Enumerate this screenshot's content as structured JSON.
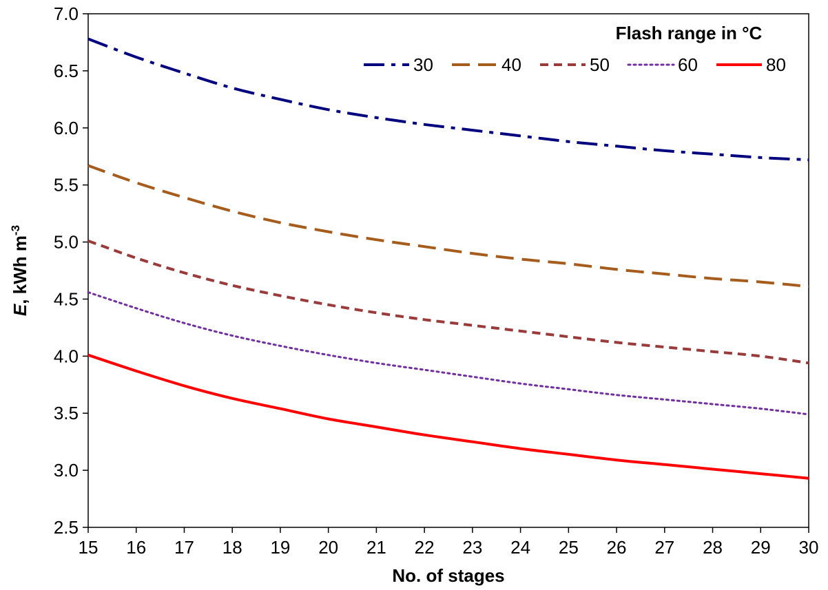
{
  "chart_data": {
    "type": "line",
    "xlabel": "No. of stages",
    "ylabel_italic": "E",
    "ylabel_rest": ", kWh m",
    "ylabel_sup": "-3",
    "xlim": [
      15,
      30
    ],
    "ylim": [
      2.5,
      7.0
    ],
    "xticks": [
      15,
      16,
      17,
      18,
      19,
      20,
      21,
      22,
      23,
      24,
      25,
      26,
      27,
      28,
      29,
      30
    ],
    "yticks": [
      2.5,
      3.0,
      3.5,
      4.0,
      4.5,
      5.0,
      5.5,
      6.0,
      6.5,
      7.0
    ],
    "ytick_labels": [
      "2.5",
      "3.0",
      "3.5",
      "4.0",
      "4.5",
      "5.0",
      "5.5",
      "6.0",
      "6.5",
      "7.0"
    ],
    "grid": false,
    "legend": {
      "title": "Flash range in °C",
      "position": "top-right"
    },
    "x": [
      15,
      16,
      17,
      18,
      19,
      20,
      21,
      22,
      23,
      24,
      25,
      26,
      27,
      28,
      29,
      30
    ],
    "series": [
      {
        "name": "30",
        "color": "#00007f",
        "style": "dashdot",
        "values": [
          6.78,
          6.62,
          6.48,
          6.35,
          6.25,
          6.16,
          6.09,
          6.03,
          5.98,
          5.93,
          5.88,
          5.84,
          5.8,
          5.77,
          5.74,
          5.72
        ]
      },
      {
        "name": "40",
        "color": "#a65c1d",
        "style": "longdash",
        "values": [
          5.67,
          5.52,
          5.39,
          5.27,
          5.17,
          5.09,
          5.02,
          4.96,
          4.9,
          4.85,
          4.81,
          4.76,
          4.72,
          4.68,
          4.65,
          4.61
        ]
      },
      {
        "name": "50",
        "color": "#9a3b3b",
        "style": "dash",
        "values": [
          5.01,
          4.86,
          4.73,
          4.62,
          4.53,
          4.45,
          4.38,
          4.32,
          4.27,
          4.22,
          4.17,
          4.12,
          4.08,
          4.04,
          4.0,
          3.94
        ]
      },
      {
        "name": "60",
        "color": "#7030a0",
        "style": "dot",
        "values": [
          4.56,
          4.42,
          4.29,
          4.18,
          4.09,
          4.01,
          3.94,
          3.88,
          3.82,
          3.76,
          3.71,
          3.66,
          3.62,
          3.58,
          3.54,
          3.49
        ]
      },
      {
        "name": "80",
        "color": "#ff0000",
        "style": "solid",
        "values": [
          4.01,
          3.87,
          3.74,
          3.63,
          3.54,
          3.45,
          3.38,
          3.31,
          3.25,
          3.19,
          3.14,
          3.09,
          3.05,
          3.01,
          2.97,
          2.93
        ]
      }
    ]
  }
}
